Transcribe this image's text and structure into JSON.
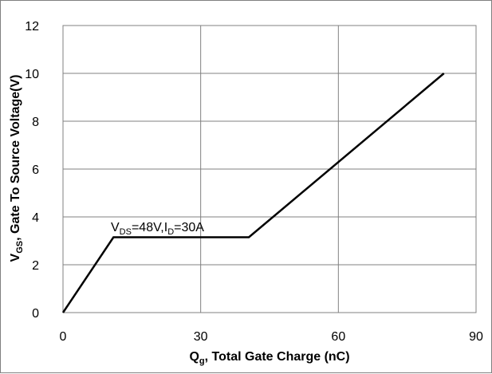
{
  "chart_data": {
    "type": "line",
    "xlim": [
      0,
      90
    ],
    "ylim": [
      0,
      12
    ],
    "x_ticks": [
      "0",
      "30",
      "60",
      "90"
    ],
    "y_ticks": [
      "0",
      "2",
      "4",
      "6",
      "8",
      "10",
      "12"
    ],
    "grid": true,
    "legend": "none",
    "xlabel": {
      "main": "Q",
      "sub": "g",
      "rest": ", Total Gate Charge (nC)"
    },
    "ylabel": {
      "main": "V",
      "sub": "GS",
      "rest": ",  Gate To  Source Voltage(V)"
    },
    "annotation": {
      "p1": "V",
      "s1": "DS",
      "p2": "=48V,I",
      "s2": "D",
      "p3": "=30A"
    },
    "series": [
      {
        "x": [
          0,
          11,
          40.5,
          83
        ],
        "y": [
          0,
          3.15,
          3.15,
          10
        ],
        "color": "#000000"
      }
    ]
  }
}
